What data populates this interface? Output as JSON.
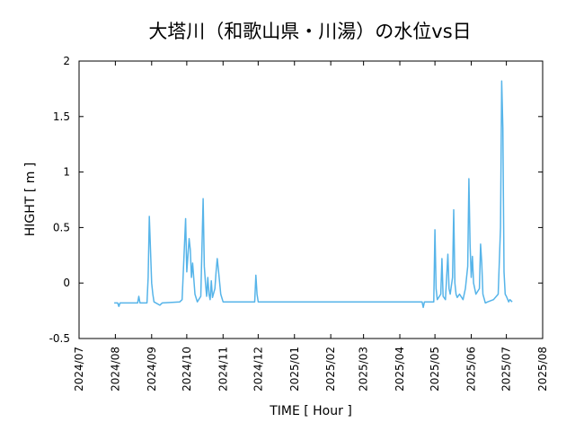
{
  "chart_data": {
    "type": "line",
    "title": "大塔川（和歌山県・川湯）の水位vs日",
    "xlabel": "TIME [ Hour ]",
    "ylabel": "HIGHT [ m ]",
    "ylim": [
      -0.5,
      2
    ],
    "xlim": [
      "2024-07-01",
      "2025-08-01"
    ],
    "y_ticks": [
      {
        "value": 2,
        "label": "2"
      },
      {
        "value": 1.5,
        "label": "1.5"
      },
      {
        "value": 1,
        "label": "1"
      },
      {
        "value": 0.5,
        "label": "0.5"
      },
      {
        "value": 0,
        "label": "0"
      },
      {
        "value": -0.5,
        "label": "-0.5"
      }
    ],
    "x_ticks": [
      {
        "date": "2024-07-01",
        "label": "2024/07"
      },
      {
        "date": "2024-08-01",
        "label": "2024/08"
      },
      {
        "date": "2024-09-01",
        "label": "2024/09"
      },
      {
        "date": "2024-10-01",
        "label": "2024/10"
      },
      {
        "date": "2024-11-01",
        "label": "2024/11"
      },
      {
        "date": "2024-12-01",
        "label": "2024/12"
      },
      {
        "date": "2025-01-01",
        "label": "2025/01"
      },
      {
        "date": "2025-02-01",
        "label": "2025/02"
      },
      {
        "date": "2025-03-01",
        "label": "2025/03"
      },
      {
        "date": "2025-04-01",
        "label": "2025/04"
      },
      {
        "date": "2025-05-01",
        "label": "2025/05"
      },
      {
        "date": "2025-06-01",
        "label": "2025/06"
      },
      {
        "date": "2025-07-01",
        "label": "2025/07"
      },
      {
        "date": "2025-08-01",
        "label": "2025/08"
      }
    ],
    "grid": false,
    "series": [
      {
        "color": "#56b4e9",
        "points": [
          [
            "2024-07-31",
            -0.18
          ],
          [
            "2024-08-03",
            -0.18
          ],
          [
            "2024-08-04",
            -0.21
          ],
          [
            "2024-08-05",
            -0.18
          ],
          [
            "2024-08-20",
            -0.18
          ],
          [
            "2024-08-21",
            -0.12
          ],
          [
            "2024-08-22",
            -0.18
          ],
          [
            "2024-08-28",
            -0.18
          ],
          [
            "2024-08-29",
            0.05
          ],
          [
            "2024-08-30",
            0.6
          ],
          [
            "2024-08-31",
            0.3
          ],
          [
            "2024-09-01",
            0.0
          ],
          [
            "2024-09-02",
            -0.1
          ],
          [
            "2024-09-03",
            -0.17
          ],
          [
            "2024-09-08",
            -0.2
          ],
          [
            "2024-09-10",
            -0.18
          ],
          [
            "2024-09-25",
            -0.17
          ],
          [
            "2024-09-27",
            -0.15
          ],
          [
            "2024-09-30",
            0.58
          ],
          [
            "2024-10-01",
            0.1
          ],
          [
            "2024-10-02",
            0.25
          ],
          [
            "2024-10-03",
            0.4
          ],
          [
            "2024-10-04",
            0.3
          ],
          [
            "2024-10-05",
            0.05
          ],
          [
            "2024-10-06",
            0.18
          ],
          [
            "2024-10-08",
            -0.1
          ],
          [
            "2024-10-10",
            -0.17
          ],
          [
            "2024-10-13",
            -0.12
          ],
          [
            "2024-10-15",
            0.76
          ],
          [
            "2024-10-16",
            0.15
          ],
          [
            "2024-10-17",
            0.0
          ],
          [
            "2024-10-18",
            -0.12
          ],
          [
            "2024-10-19",
            0.05
          ],
          [
            "2024-10-20",
            -0.1
          ],
          [
            "2024-10-21",
            -0.15
          ],
          [
            "2024-10-22",
            0.02
          ],
          [
            "2024-10-23",
            -0.13
          ],
          [
            "2024-10-25",
            -0.05
          ],
          [
            "2024-10-26",
            0.1
          ],
          [
            "2024-10-27",
            0.22
          ],
          [
            "2024-10-28",
            0.12
          ],
          [
            "2024-10-30",
            -0.1
          ],
          [
            "2024-11-01",
            -0.17
          ],
          [
            "2024-11-28",
            -0.17
          ],
          [
            "2024-11-29",
            0.07
          ],
          [
            "2024-11-30",
            -0.1
          ],
          [
            "2024-12-01",
            -0.17
          ],
          [
            "2025-04-20",
            -0.17
          ],
          [
            "2025-04-21",
            -0.22
          ],
          [
            "2025-04-22",
            -0.17
          ],
          [
            "2025-04-30",
            -0.17
          ],
          [
            "2025-05-01",
            0.48
          ],
          [
            "2025-05-02",
            -0.05
          ],
          [
            "2025-05-03",
            -0.15
          ],
          [
            "2025-05-06",
            -0.1
          ],
          [
            "2025-05-07",
            0.22
          ],
          [
            "2025-05-08",
            -0.12
          ],
          [
            "2025-05-10",
            -0.15
          ],
          [
            "2025-05-12",
            0.26
          ],
          [
            "2025-05-13",
            -0.05
          ],
          [
            "2025-05-14",
            -0.1
          ],
          [
            "2025-05-16",
            0.05
          ],
          [
            "2025-05-17",
            0.66
          ],
          [
            "2025-05-18",
            0.0
          ],
          [
            "2025-05-19",
            -0.1
          ],
          [
            "2025-05-20",
            -0.13
          ],
          [
            "2025-05-22",
            -0.1
          ],
          [
            "2025-05-25",
            -0.15
          ],
          [
            "2025-05-27",
            -0.05
          ],
          [
            "2025-05-29",
            0.15
          ],
          [
            "2025-05-30",
            0.94
          ],
          [
            "2025-05-31",
            0.35
          ],
          [
            "2025-06-01",
            0.05
          ],
          [
            "2025-06-02",
            0.24
          ],
          [
            "2025-06-03",
            0.0
          ],
          [
            "2025-06-05",
            -0.1
          ],
          [
            "2025-06-08",
            -0.05
          ],
          [
            "2025-06-09",
            0.35
          ],
          [
            "2025-06-10",
            0.18
          ],
          [
            "2025-06-11",
            -0.1
          ],
          [
            "2025-06-13",
            -0.18
          ],
          [
            "2025-06-15",
            -0.17
          ],
          [
            "2025-06-20",
            -0.15
          ],
          [
            "2025-06-24",
            -0.1
          ],
          [
            "2025-06-26",
            0.5
          ],
          [
            "2025-06-27",
            1.82
          ],
          [
            "2025-06-28",
            1.4
          ],
          [
            "2025-06-29",
            0.1
          ],
          [
            "2025-06-30",
            -0.1
          ],
          [
            "2025-07-01",
            -0.12
          ],
          [
            "2025-07-03",
            -0.17
          ],
          [
            "2025-07-04",
            -0.15
          ],
          [
            "2025-07-06",
            -0.17
          ]
        ]
      }
    ]
  }
}
